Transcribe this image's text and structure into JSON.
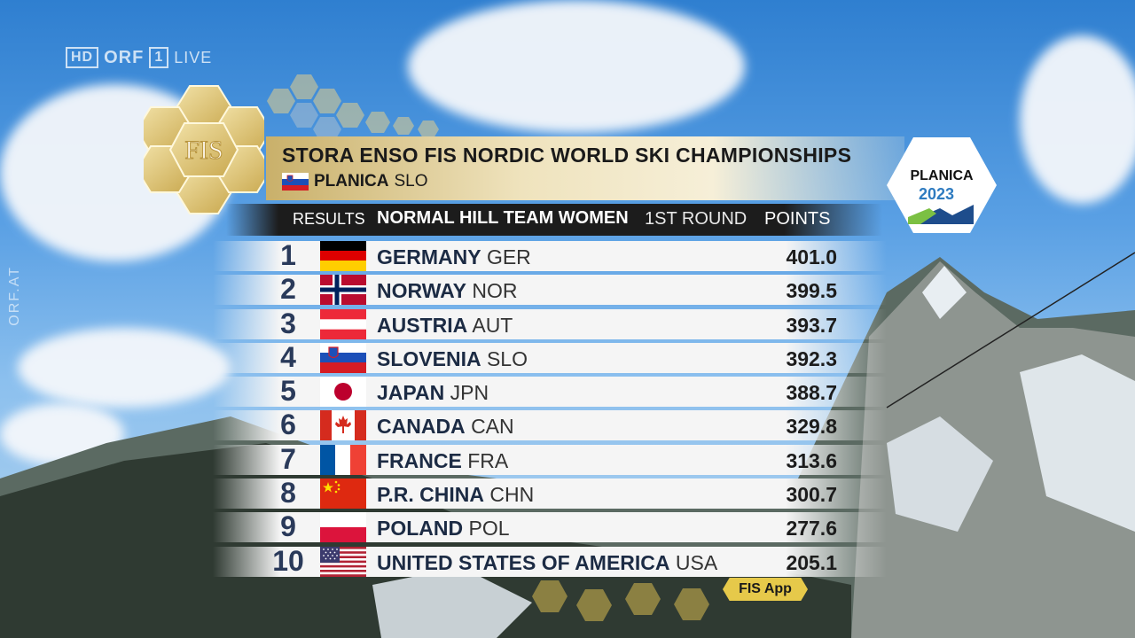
{
  "broadcast": {
    "hd": "HD",
    "channel": "ORF",
    "channel_num": "1",
    "live": "LIVE",
    "side_mark": "ORF.AT"
  },
  "logo": {
    "text": "FIS"
  },
  "header": {
    "title": "STORA ENSO FIS NORDIC WORLD SKI CHAMPIONSHIPS",
    "venue": "PLANICA",
    "venue_code": "SLO"
  },
  "planica_logo": {
    "name": "PLANICA",
    "year": "2023"
  },
  "results_header": {
    "label": "RESULTS",
    "event": "NORMAL HILL TEAM WOMEN",
    "round": "1ST ROUND",
    "points": "POINTS"
  },
  "results": [
    {
      "rank": "1",
      "country": "GERMANY",
      "code": "GER",
      "points": "401.0",
      "flag": "germany-flag"
    },
    {
      "rank": "2",
      "country": "NORWAY",
      "code": "NOR",
      "points": "399.5",
      "flag": "norway-flag"
    },
    {
      "rank": "3",
      "country": "AUSTRIA",
      "code": "AUT",
      "points": "393.7",
      "flag": "austria-flag"
    },
    {
      "rank": "4",
      "country": "SLOVENIA",
      "code": "SLO",
      "points": "392.3",
      "flag": "slovenia-flag"
    },
    {
      "rank": "5",
      "country": "JAPAN",
      "code": "JPN",
      "points": "388.7",
      "flag": "japan-flag"
    },
    {
      "rank": "6",
      "country": "CANADA",
      "code": "CAN",
      "points": "329.8",
      "flag": "canada-flag"
    },
    {
      "rank": "7",
      "country": "FRANCE",
      "code": "FRA",
      "points": "313.6",
      "flag": "france-flag"
    },
    {
      "rank": "8",
      "country": "P.R. CHINA",
      "code": "CHN",
      "points": "300.7",
      "flag": "china-flag"
    },
    {
      "rank": "9",
      "country": "POLAND",
      "code": "POL",
      "points": "277.6",
      "flag": "poland-flag"
    },
    {
      "rank": "10",
      "country": "UNITED STATES OF AMERICA",
      "code": "USA",
      "points": "205.1",
      "flag": "usa-flag"
    }
  ],
  "footer": {
    "app_label": "FIS App"
  },
  "colors": {
    "gold": "#d4b75c",
    "navy": "#1c2b44",
    "header_bg": "#1c1c1c"
  }
}
